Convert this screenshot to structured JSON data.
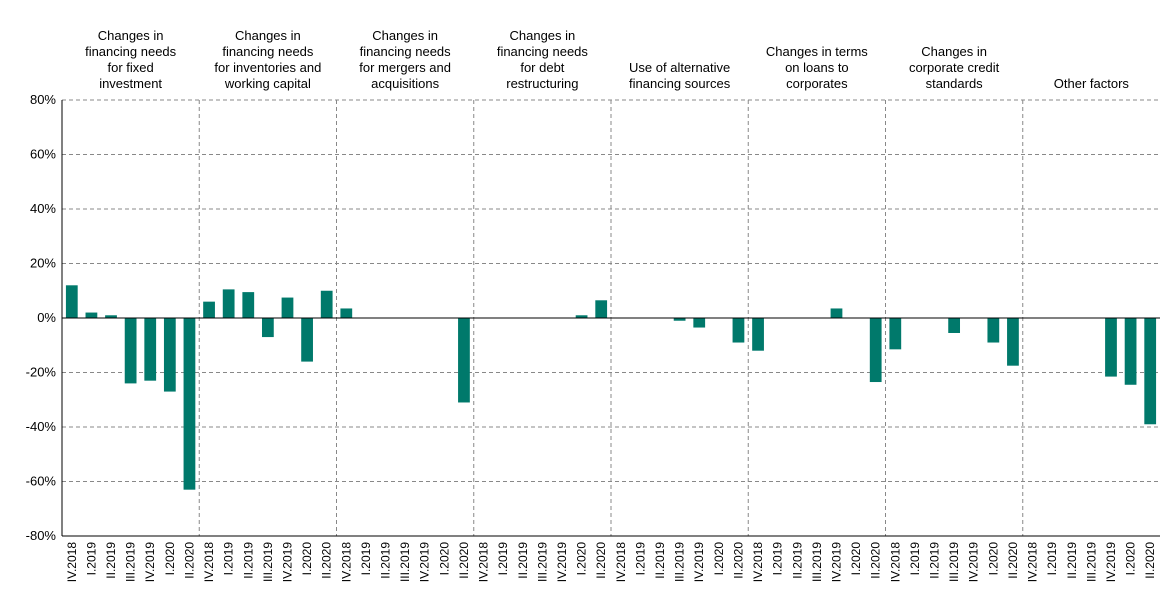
{
  "chart_data": {
    "type": "bar",
    "color": "#00796b",
    "categories": [
      "IV.2018",
      "I.2019",
      "II.2019",
      "III.2019",
      "IV.2019",
      "I.2020",
      "II.2020"
    ],
    "groups": [
      {
        "name": [
          "Changes in",
          "financing needs",
          "for fixed",
          "investment"
        ],
        "values": [
          12,
          2,
          1,
          -24,
          -23,
          -27,
          -63
        ]
      },
      {
        "name": [
          "Changes in",
          "financing needs",
          "for inventories and",
          "working capital"
        ],
        "values": [
          6,
          10.5,
          9.5,
          -7,
          7.5,
          -16,
          10
        ]
      },
      {
        "name": [
          "Changes in",
          "financing needs",
          "for mergers and",
          "acquisitions"
        ],
        "values": [
          3.5,
          0,
          0,
          0,
          0,
          0,
          -31
        ]
      },
      {
        "name": [
          "Changes in",
          "financing needs",
          "for debt",
          "restructuring"
        ],
        "values": [
          0,
          0,
          0,
          0,
          0,
          1,
          6.5
        ]
      },
      {
        "name": [
          "Use of alternative",
          "financing sources"
        ],
        "values": [
          0,
          0,
          0,
          -1,
          -3.5,
          0,
          -9
        ]
      },
      {
        "name": [
          "Changes in terms",
          "on loans to",
          "corporates"
        ],
        "values": [
          -12,
          0,
          0,
          0,
          3.5,
          0,
          -23.5
        ]
      },
      {
        "name": [
          "Changes in",
          "corporate credit",
          "standards"
        ],
        "values": [
          -11.5,
          0,
          0,
          -5.5,
          0,
          -9,
          -17.5
        ]
      },
      {
        "name": [
          "Other factors"
        ],
        "values": [
          0,
          0,
          0,
          0,
          -21.5,
          -24.5,
          -39
        ]
      }
    ],
    "ylim": [
      -80,
      80
    ],
    "yticks": [
      {
        "value": -80,
        "label": "-80%"
      },
      {
        "value": -60,
        "label": "-60%"
      },
      {
        "value": -40,
        "label": "-40%"
      },
      {
        "value": -20,
        "label": "-20%"
      },
      {
        "value": 0,
        "label": "0%"
      },
      {
        "value": 20,
        "label": "20%"
      },
      {
        "value": 40,
        "label": "40%"
      },
      {
        "value": 60,
        "label": "60%"
      },
      {
        "value": 80,
        "label": "80%"
      }
    ],
    "grid": true
  }
}
